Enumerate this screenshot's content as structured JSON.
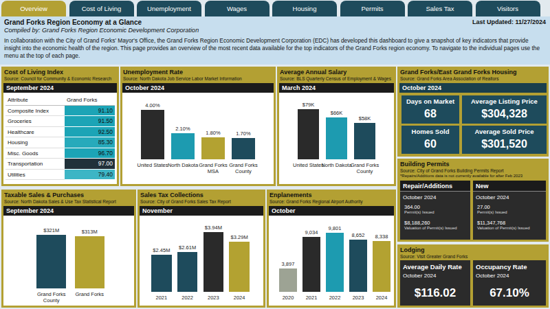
{
  "tabs": [
    "Overview",
    "Cost of Living",
    "Unemployment",
    "Wages",
    "Housing",
    "Permits",
    "Sales Tax",
    "Visitors"
  ],
  "header": {
    "title": "Grand Forks Region Economy at a Glance",
    "subtitle": "Compiled by: Grand Forks Region Economic Development Corporation",
    "last_updated": "Last Updated: 11/27/2024",
    "description": "In collaboration with the City of Grand Forks' Mayor's Office, the Grand Forks Region Economic Development Corporation (EDC) has developed this dashboard to give a snapshot of key indicators that provide insight into the economic health of the region. This page provides an overview of the most recent data available for the top indicators of the Grand Forks region economy. To navigate to the individual pages use the menu at the top of each page."
  },
  "cost_of_living": {
    "title": "Cost of Living Index",
    "subtitle": "Source: Council for Community & Economic Research",
    "period": "September 2024",
    "columns": [
      "Attribute",
      "Grand Forks"
    ],
    "rows": [
      [
        "Composite Index",
        "91.10"
      ],
      [
        "Groceries",
        "91.50"
      ],
      [
        "Healthcare",
        "92.50"
      ],
      [
        "Housing",
        "85.30"
      ],
      [
        "Misc. Goods",
        "96.70"
      ],
      [
        "Transportation",
        "97.00"
      ],
      [
        "Utilities",
        "79.40"
      ]
    ],
    "colors": [
      "#1ca4b6",
      "#1ca4b6",
      "#1ca4b6",
      "#27aabb",
      "#1ca4b6",
      "#20313a",
      "#3db5c5"
    ]
  },
  "chart_data": [
    {
      "type": "bar",
      "title": "Unemployment Rate",
      "subtitle": "Source: North Dakota Job Service Labor Market Information",
      "period": "October 2024",
      "categories": [
        "United States",
        "North Dakota",
        "Grand Forks MSA",
        "Grand Forks County"
      ],
      "values": [
        4.0,
        2.1,
        1.8,
        1.7
      ],
      "value_labels": [
        "4.00%",
        "2.10%",
        "1.80%",
        "1.70%"
      ],
      "colors": [
        "#2a2a2a",
        "#1d9bb0",
        "#b3a231",
        "#1e4b5c"
      ],
      "ylim": [
        0,
        4.6
      ],
      "tick_labels": false,
      "data_labels": true
    },
    {
      "type": "bar",
      "title": "Average Annual Salary",
      "subtitle": "Source: BLS Quarterly Census of Employment & Wages",
      "period": "March 2024",
      "categories": [
        "United States",
        "North Dakota",
        "Grand Forks County"
      ],
      "values": [
        79000,
        66000,
        58000
      ],
      "value_labels": [
        "$79K",
        "$66K",
        "$58K"
      ],
      "colors": [
        "#2a2a2a",
        "#1d9bb0",
        "#1e4b5c"
      ],
      "ylim": [
        0,
        90000
      ],
      "tick_labels": false,
      "data_labels": true
    },
    {
      "type": "bar",
      "title": "Taxable Sales & Purchases",
      "subtitle": "Source: North Dakota Sales & Use Tax Statistical Report",
      "period": "September 2024",
      "categories": [
        "Grand Forks County",
        "Grand Forks"
      ],
      "values": [
        321000000,
        313000000
      ],
      "value_labels": [
        "$321M",
        "$313M"
      ],
      "colors": [
        "#1e4b5c",
        "#b3a231"
      ],
      "ylim": [
        0,
        380000000
      ],
      "tick_labels": false,
      "data_labels": true
    },
    {
      "type": "bar",
      "title": "Sales Tax Collections",
      "subtitle": "Source: City of Grand Forks Sales Tax Report",
      "period": "November",
      "categories": [
        "2021",
        "2022",
        "2023",
        "2024"
      ],
      "values": [
        2450000,
        2610000,
        3940000,
        3290000
      ],
      "value_labels": [
        "$2.45M",
        "$2.61M",
        "$3.94M",
        "$3.29M"
      ],
      "colors": [
        "#1e4b5c",
        "#1e4b5c",
        "#2a2a2a",
        "#b3a231"
      ],
      "ylim": [
        0,
        4400000
      ],
      "tick_labels": false,
      "data_labels": true
    },
    {
      "type": "bar",
      "title": "Enplanements",
      "subtitle": "Source: Grand Forks Regional Airport Authority",
      "period": "October",
      "categories": [
        "2020",
        "2021",
        "2022",
        "2023",
        "2024"
      ],
      "values": [
        3897,
        9034,
        9801,
        8652,
        8338
      ],
      "value_labels": [
        "3,897",
        "9,034",
        "9,801",
        "8,652",
        "8,338"
      ],
      "colors": [
        "#9da394",
        "#2a2a2a",
        "#1d9bb0",
        "#1e4b5c",
        "#b3a231"
      ],
      "ylim": [
        0,
        11000
      ],
      "tick_labels": false,
      "data_labels": true
    }
  ],
  "housing": {
    "title": "Grand Forks/East Grand Forks Housing",
    "subtitle": "Source: Grand Forks Area Association of Realtors",
    "period": "October 2024",
    "tiles": [
      {
        "label": "Days on Market",
        "value": "68"
      },
      {
        "label": "Average Listing Price",
        "value": "$304,328"
      },
      {
        "label": "Homes Sold",
        "value": "60"
      },
      {
        "label": "Average Sold Price",
        "value": "$301,520"
      }
    ]
  },
  "permits": {
    "title": "Building Permits",
    "subtitle": "Source: City of Grand Forks Building Permits Report",
    "note": "*Repairs/Additions data is not currently available for after Feb 2023",
    "boxes": [
      {
        "title": "Repair/Additions",
        "period": "October 2024",
        "count": "364.00",
        "count_label": "Permit(s) Issued",
        "valuation": "$8,188,260",
        "valuation_label": "Valuation of Permit(s) Issued"
      },
      {
        "title": "New",
        "period": "October 2024",
        "count": "27.00",
        "count_label": "Permit(s) Issued",
        "valuation": "$11,347,768",
        "valuation_label": "Valuation of Permit(s) Issued"
      }
    ]
  },
  "lodging": {
    "title": "Lodging",
    "subtitle": "Source: Visit Greater Grand Forks",
    "tiles": [
      {
        "label": "Average Daily Rate",
        "period": "October 2024",
        "value": "$116.02"
      },
      {
        "label": "Occupancy Rate",
        "period": "October 2024",
        "value": "67.10%"
      }
    ]
  }
}
